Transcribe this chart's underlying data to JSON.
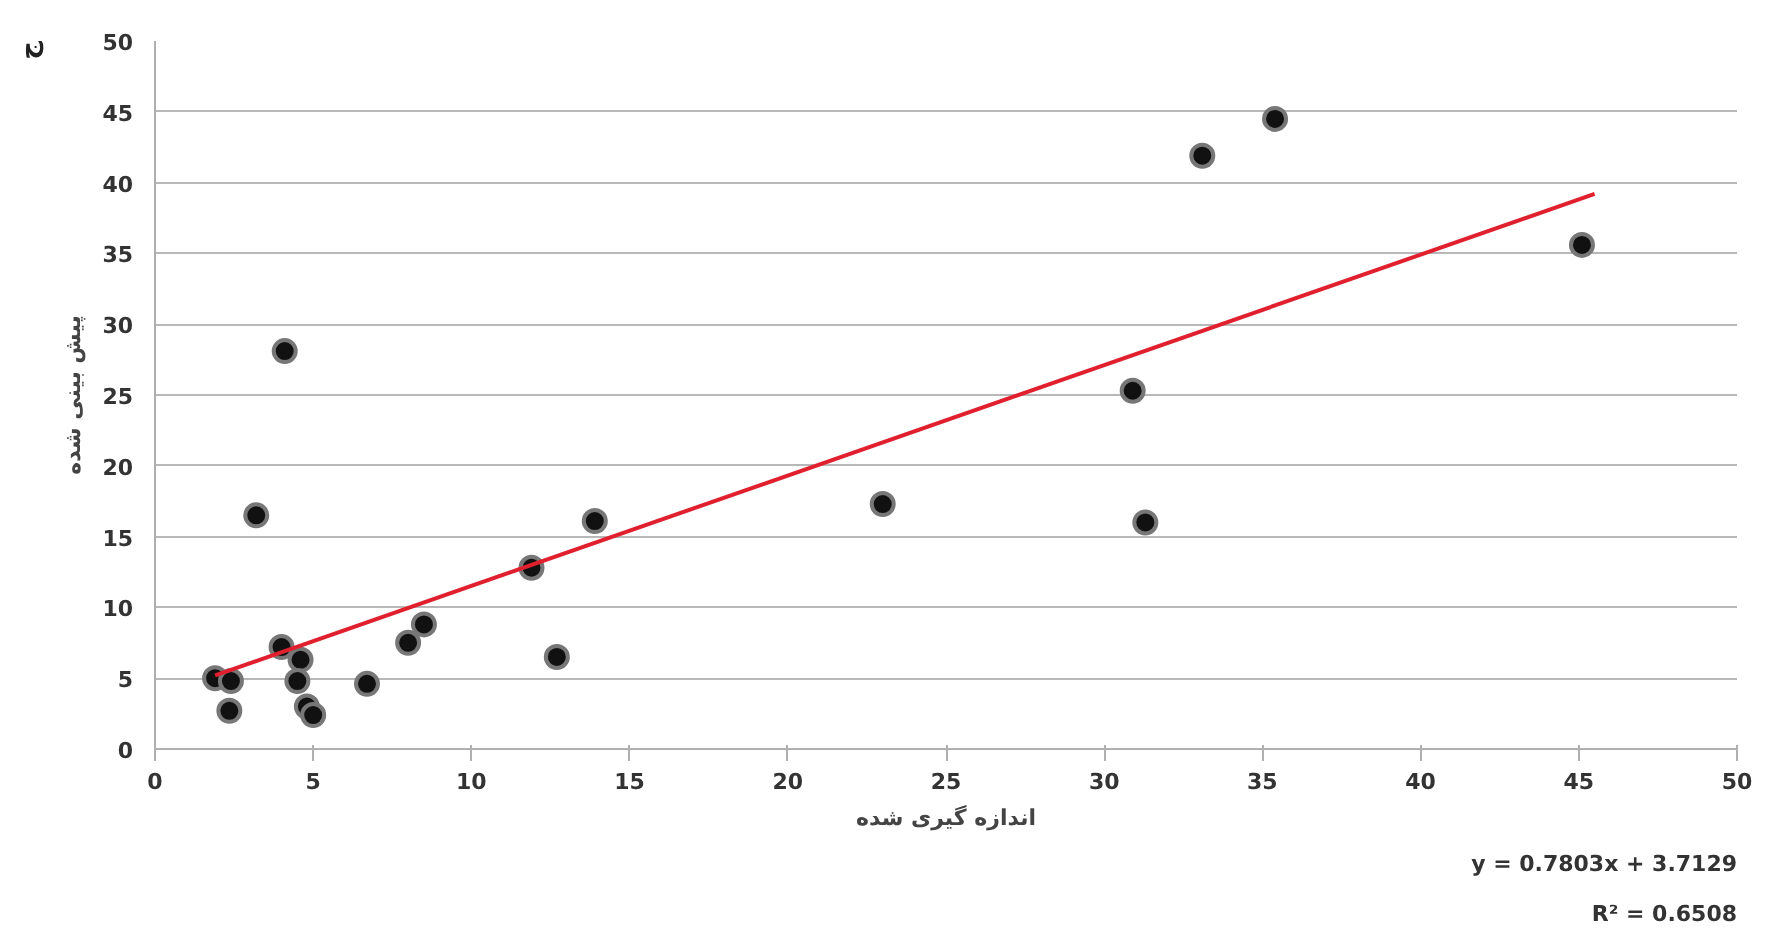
{
  "chart_data": {
    "type": "scatter",
    "xlabel": "اندازه گیری شده",
    "ylabel": "پیش بینی شده",
    "annotations": [
      "ج",
      "y = 0.7803x + 3.7129",
      "R² = 0.6508"
    ],
    "xlim": [
      0,
      50
    ],
    "xticks": [
      0,
      5,
      10,
      15,
      20,
      25,
      30,
      35,
      40,
      45,
      50
    ],
    "ylim": [
      0,
      50
    ],
    "yticks": [
      0,
      5,
      10,
      15,
      20,
      25,
      30,
      35,
      40,
      45,
      50
    ],
    "grid": "y",
    "series": [
      {
        "color": "#111111",
        "marker": "circle",
        "x": [
          1.9,
          2.4,
          2.35,
          3.2,
          4.1,
          4.0,
          4.6,
          4.5,
          4.8,
          5.0,
          6.7,
          8.0,
          8.5,
          11.9,
          12.7,
          13.9,
          23.0,
          30.9,
          31.3,
          33.1,
          35.4,
          45.1
        ],
        "values": [
          5.0,
          4.8,
          2.7,
          16.5,
          28.1,
          7.2,
          6.3,
          4.8,
          3.0,
          2.4,
          4.6,
          7.5,
          8.8,
          12.8,
          6.5,
          16.1,
          17.3,
          25.3,
          16.0,
          41.9,
          44.5,
          35.6
        ]
      },
      {
        "type": "line",
        "color": "#e0202e",
        "x": [
          1.9,
          45.5
        ],
        "values": [
          5.2,
          39.2
        ]
      }
    ]
  }
}
